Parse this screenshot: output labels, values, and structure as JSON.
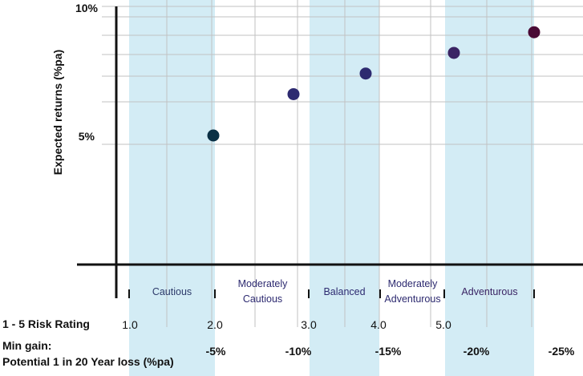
{
  "chart_data": {
    "type": "scatter",
    "ylabel": "Expected returns (%pa)",
    "ylim": [
      0,
      10
    ],
    "yticks": [
      "10%",
      "5%"
    ],
    "ytick_values": [
      10,
      5
    ],
    "points": [
      {
        "x": 2.0,
        "y": 5.0,
        "color": "#0b3045"
      },
      {
        "x": 3.0,
        "y": 6.6,
        "color": "#2d2a70"
      },
      {
        "x": 3.9,
        "y": 7.4,
        "color": "#2d2a70"
      },
      {
        "x": 5.0,
        "y": 8.2,
        "color": "#3a2464"
      },
      {
        "x": 6.0,
        "y": 9.0,
        "color": "#4a0a35"
      }
    ],
    "bands": [
      {
        "label": "Cautious",
        "shaded": true,
        "color": "#2d3a6a"
      },
      {
        "label": "Moderately\nCautious",
        "shaded": false,
        "color": "#2d2a70"
      },
      {
        "label": "Balanced",
        "shaded": true,
        "color": "#2d2a70"
      },
      {
        "label": "Moderately\nAdventurous",
        "shaded": false,
        "color": "#2d2a70"
      },
      {
        "label": "Adventurous",
        "shaded": true,
        "color": "#3a2464"
      }
    ],
    "risk_rating": {
      "label": "1 - 5 Risk Rating",
      "ticks": [
        "1.0",
        "2.0",
        "3.0",
        "4.0",
        "5.0"
      ]
    },
    "min_gain": {
      "label_line1": "Min gain:",
      "label_line2": "Potential 1 in 20 Year loss (%pa)",
      "ticks": [
        "-5%",
        "-10%",
        "-15%",
        "-20%",
        "-25%"
      ]
    },
    "grid": true,
    "colors": {
      "band_fill": "#d3ecf5",
      "grid": "#c2c2c2",
      "axis": "#111111"
    }
  }
}
